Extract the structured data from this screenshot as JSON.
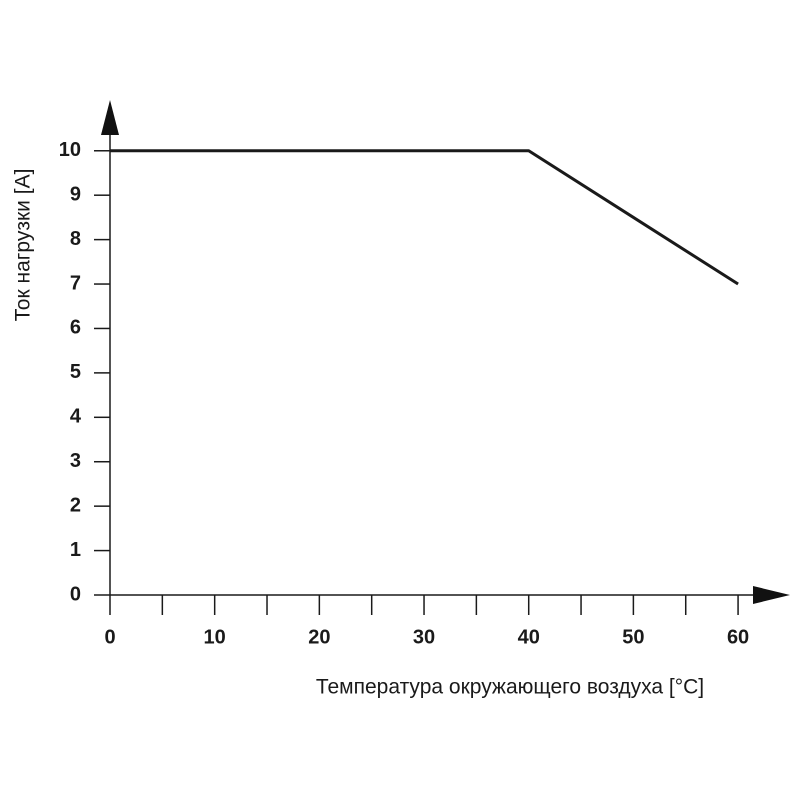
{
  "chart_data": {
    "type": "line",
    "x_label": "Температура окружающего воздуха [°C]",
    "y_label": "Ток нагрузки [A]",
    "x": [
      0,
      40,
      60
    ],
    "series": [
      {
        "color": "#1a1a1a",
        "values": [
          10,
          10,
          7
        ]
      }
    ],
    "xlim": [
      0,
      62
    ],
    "ylim": [
      0,
      10.4
    ],
    "xticks": [
      0,
      10,
      20,
      30,
      40,
      50,
      60
    ],
    "xminorticks": [
      5,
      15,
      25,
      35,
      45,
      55
    ],
    "yticks": [
      0,
      1,
      2,
      3,
      4,
      5,
      6,
      7,
      8,
      9,
      10
    ]
  }
}
